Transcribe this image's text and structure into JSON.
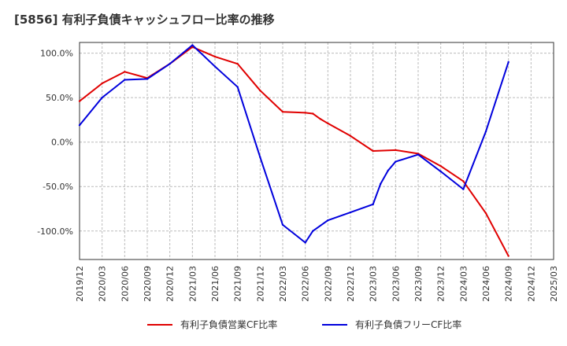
{
  "chart_data": {
    "type": "line",
    "title": "[5856]  有利子負債キャッシュフロー比率の推移",
    "xlabel": "",
    "ylabel": "",
    "x_ticks": [
      "2019/12",
      "2020/03",
      "2020/06",
      "2020/09",
      "2020/12",
      "2021/03",
      "2021/06",
      "2021/09",
      "2021/12",
      "2022/03",
      "2022/06",
      "2022/09",
      "2022/12",
      "2023/03",
      "2023/06",
      "2023/09",
      "2023/12",
      "2024/03",
      "2024/06",
      "2024/09",
      "2024/12",
      "2025/03"
    ],
    "y_ticks": [
      100,
      50,
      0,
      -50,
      -100
    ],
    "y_tick_labels": [
      "100.0%",
      "50.0%",
      "0.0%",
      "-50.0%",
      "-100.0%"
    ],
    "ylim": [
      -132,
      112
    ],
    "grid": true,
    "legend_position": "bottom",
    "series": [
      {
        "name": "有利子負債営業CF比率",
        "color": "#e00000",
        "points": [
          [
            "2019/12",
            46
          ],
          [
            "2020/03",
            66
          ],
          [
            "2020/06",
            79
          ],
          [
            "2020/09",
            72
          ],
          [
            "2020/12",
            88
          ],
          [
            "2021/03",
            107
          ],
          [
            "2021/06",
            96
          ],
          [
            "2021/09",
            88
          ],
          [
            "2021/12",
            58
          ],
          [
            "2022/03",
            34
          ],
          [
            "2022/06",
            33
          ],
          [
            "2022/07",
            32
          ],
          [
            "2022/08",
            26
          ],
          [
            "2022/09",
            21
          ],
          [
            "2022/12",
            7
          ],
          [
            "2023/03",
            -10
          ],
          [
            "2023/06",
            -9
          ],
          [
            "2023/09",
            -13
          ],
          [
            "2023/12",
            -27
          ],
          [
            "2024/03",
            -44
          ],
          [
            "2024/06",
            -80
          ],
          [
            "2024/09",
            -128
          ]
        ]
      },
      {
        "name": "有利子負債フリーCF比率",
        "color": "#0000dd",
        "points": [
          [
            "2019/12",
            19
          ],
          [
            "2020/03",
            50
          ],
          [
            "2020/06",
            70
          ],
          [
            "2020/09",
            71
          ],
          [
            "2020/12",
            88
          ],
          [
            "2021/03",
            109
          ],
          [
            "2021/06",
            85
          ],
          [
            "2021/09",
            62
          ],
          [
            "2021/12",
            -17
          ],
          [
            "2022/03",
            -93
          ],
          [
            "2022/06",
            -113
          ],
          [
            "2022/07",
            -100
          ],
          [
            "2022/09",
            -88
          ],
          [
            "2022/12",
            -79
          ],
          [
            "2023/03",
            -70
          ],
          [
            "2023/04",
            -47
          ],
          [
            "2023/05",
            -32
          ],
          [
            "2023/06",
            -22
          ],
          [
            "2023/09",
            -14
          ],
          [
            "2023/12",
            -33
          ],
          [
            "2024/03",
            -53
          ],
          [
            "2024/06",
            12
          ],
          [
            "2024/09",
            90
          ]
        ]
      }
    ]
  }
}
